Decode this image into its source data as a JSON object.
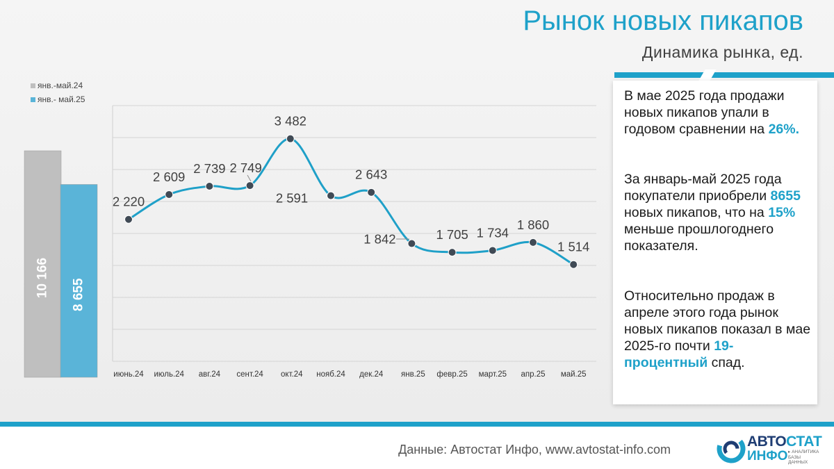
{
  "slide": {
    "title": "Рынок новых пикапов",
    "subtitle": "Динамика рынка, ед."
  },
  "info_box": {
    "p1_text": "В мае 2025 года продажи новых пикапов упали в годовом сравнении на ",
    "p1_highlight": "26%.",
    "p2_text_a": "За январь-май 2025 года покупатели приобрели ",
    "p2_highlight_a": "8655",
    "p2_text_b": " новых пикапов, что на ",
    "p2_highlight_b": "15%",
    "p2_text_c": " меньше прошлогоднего показателя.",
    "p3_text_a": "Относительно продаж в апреле этого года рынок новых пикапов показал в мае 2025-го почти ",
    "p3_highlight": "19-процентный",
    "p3_text_b": " спад."
  },
  "footer": {
    "source": "Данные: Автостат Инфо, www.avtostat-info.com",
    "logo_word1_a": "АВТО",
    "logo_word1_b": "СТАТ",
    "logo_word2": "ИНФО",
    "logo_tagline": "▸ АНАЛИТИКА БАЗЫ ДАННЫХ"
  },
  "colors": {
    "accent": "#1ea1c9",
    "bar_2024": "#bfbfbf",
    "bar_2025": "#5ab4d8",
    "line": "#1fa0c8",
    "marker": "#404a55",
    "logo_dark": "#1f3d73"
  },
  "chart_data": [
    {
      "type": "bar",
      "categories": [
        "янв.-май.24",
        "янв.- май.25"
      ],
      "values": [
        10166,
        8655
      ],
      "value_labels": [
        "10 166",
        "8 655"
      ],
      "legend": [
        {
          "name": "янв.-май.24",
          "color": "#bfbfbf"
        },
        {
          "name": "янв.- май.25",
          "color": "#5ab4d8"
        }
      ],
      "legend_position": "top-left"
    },
    {
      "type": "line",
      "categories": [
        "июнь.24",
        "июль.24",
        "авг.24",
        "сент.24",
        "окт.24",
        "нояб.24",
        "дек.24",
        "янв.25",
        "февр.25",
        "март.25",
        "апр.25",
        "май.25"
      ],
      "values": [
        2220,
        2609,
        2739,
        2749,
        3482,
        2591,
        2643,
        1842,
        1705,
        1734,
        1860,
        1514
      ],
      "value_labels": [
        "2 220",
        "2 609",
        "2 739",
        "2 749",
        "3 482",
        "2 591",
        "2 643",
        "1 842",
        "1 705",
        "1 734",
        "1 860",
        "1 514"
      ],
      "smooth": true,
      "grid": true,
      "ylim": [
        0,
        4000
      ]
    }
  ]
}
